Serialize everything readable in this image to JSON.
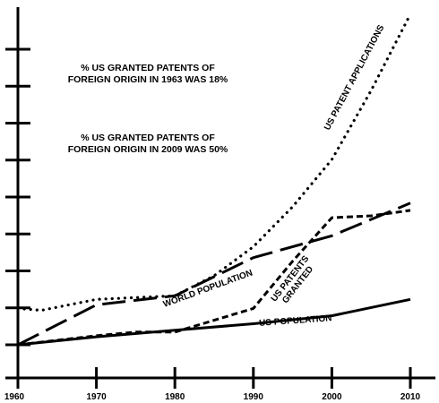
{
  "chart_data": {
    "type": "line",
    "title": "",
    "xlabel": "",
    "ylabel": "",
    "xlim": [
      1960,
      2010
    ],
    "ylim": [
      0,
      9
    ],
    "x_ticks": [
      "1960",
      "1970",
      "1980",
      "1990",
      "2000",
      "2010"
    ],
    "y_tick_count": 9,
    "y_tick_labels_shown": false,
    "grid": false,
    "legend": "none",
    "annotations": [
      {
        "lines": [
          "% US GRANTED PATENTS OF",
          "FOREIGN ORIGIN IN 1963 WAS 18%"
        ]
      },
      {
        "lines": [
          "% US GRANTED PATENTS OF",
          "FOREIGN ORIGIN IN 2009 WAS 50%"
        ]
      }
    ],
    "series": [
      {
        "name": "US PATENT APPLICATIONS",
        "style": "dotted",
        "x": [
          1960,
          1963,
          1970,
          1975,
          1980,
          1985,
          1990,
          1995,
          2000,
          2005,
          2010
        ],
        "y": [
          1.0,
          0.95,
          1.25,
          1.3,
          1.35,
          1.9,
          2.7,
          3.8,
          5.1,
          7.0,
          9.1
        ]
      },
      {
        "name": "WORLD POPULATION",
        "style": "long-dash",
        "x": [
          1960,
          1970,
          1980,
          1990,
          2000,
          2010
        ],
        "y": [
          0.0,
          1.1,
          1.35,
          2.4,
          3.0,
          3.9
        ]
      },
      {
        "name": "US PATENTS GRANTED",
        "style": "short-dash",
        "x": [
          1960,
          1970,
          1975,
          1980,
          1990,
          1995,
          2000,
          2005,
          2010
        ],
        "y": [
          0.0,
          0.25,
          0.35,
          0.35,
          1.0,
          2.3,
          3.5,
          3.55,
          3.7
        ]
      },
      {
        "name": "US POPULATION",
        "style": "solid",
        "x": [
          1960,
          1970,
          1980,
          1990,
          2000,
          2010
        ],
        "y": [
          0.0,
          0.22,
          0.4,
          0.58,
          0.8,
          1.25
        ]
      }
    ]
  }
}
